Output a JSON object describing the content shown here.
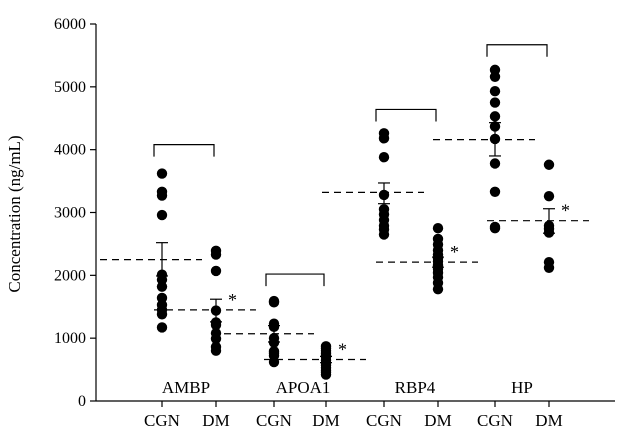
{
  "chart_data": {
    "type": "scatter",
    "ylabel": "Concentration (ng/mL)",
    "ylim": [
      0,
      6000
    ],
    "yticks": [
      0,
      1000,
      2000,
      3000,
      4000,
      5000,
      6000
    ],
    "x_categories": [
      "CGN",
      "DM",
      "CGN",
      "DM",
      "CGN",
      "DM",
      "CGN",
      "DM"
    ],
    "groups": [
      {
        "name": "AMBP",
        "CGN": {
          "points": [
            3620,
            3330,
            3270,
            2960,
            2010,
            1930,
            1820,
            1640,
            1530,
            1450,
            1380,
            1170
          ],
          "mean": 2250,
          "sem_upper": 2520,
          "sem_lower": 1990
        },
        "DM": {
          "points": [
            2390,
            2330,
            2070,
            1440,
            1250,
            1210,
            1080,
            990,
            860,
            800
          ],
          "mean": 1450,
          "sem_upper": 1620,
          "sem_lower": 1260
        },
        "bracket_y": 4080,
        "marker": "*"
      },
      {
        "name": "APOA1",
        "CGN": {
          "points": [
            1590,
            1570,
            1230,
            1180,
            1000,
            930,
            790,
            760,
            720,
            620
          ],
          "mean": 1070,
          "sem_upper": 1200,
          "sem_lower": 940
        },
        "DM": {
          "points": [
            870,
            840,
            800,
            760,
            730,
            700,
            650,
            610,
            570,
            530,
            490,
            460,
            420
          ],
          "mean": 660,
          "sem_upper": 710,
          "sem_lower": 610
        },
        "bracket_y": 2020,
        "marker": "*"
      },
      {
        "name": "RBP4",
        "CGN": {
          "points": [
            4260,
            4180,
            3880,
            3280,
            3050,
            2970,
            2880,
            2790,
            2730,
            2650
          ],
          "mean": 3320,
          "sem_upper": 3470,
          "sem_lower": 3140
        },
        "DM": {
          "points": [
            2750,
            2580,
            2490,
            2400,
            2330,
            2270,
            2220,
            2160,
            2100,
            2040,
            1970,
            1880,
            1780
          ],
          "mean": 2210,
          "sem_upper": 2290,
          "sem_lower": 2130
        },
        "bracket_y": 4640,
        "marker": "*"
      },
      {
        "name": "HP",
        "CGN": {
          "points": [
            5270,
            5160,
            4930,
            4750,
            4530,
            4370,
            4170,
            3780,
            3330,
            2770,
            2750
          ],
          "mean": 4160,
          "sem_upper": 4430,
          "sem_lower": 3900
        },
        "DM": {
          "points": [
            3760,
            3260,
            2790,
            2740,
            2680,
            2210,
            2120
          ],
          "mean": 2870,
          "sem_upper": 3060,
          "sem_lower": 2670
        },
        "bracket_y": 5670,
        "marker": "*"
      }
    ]
  }
}
